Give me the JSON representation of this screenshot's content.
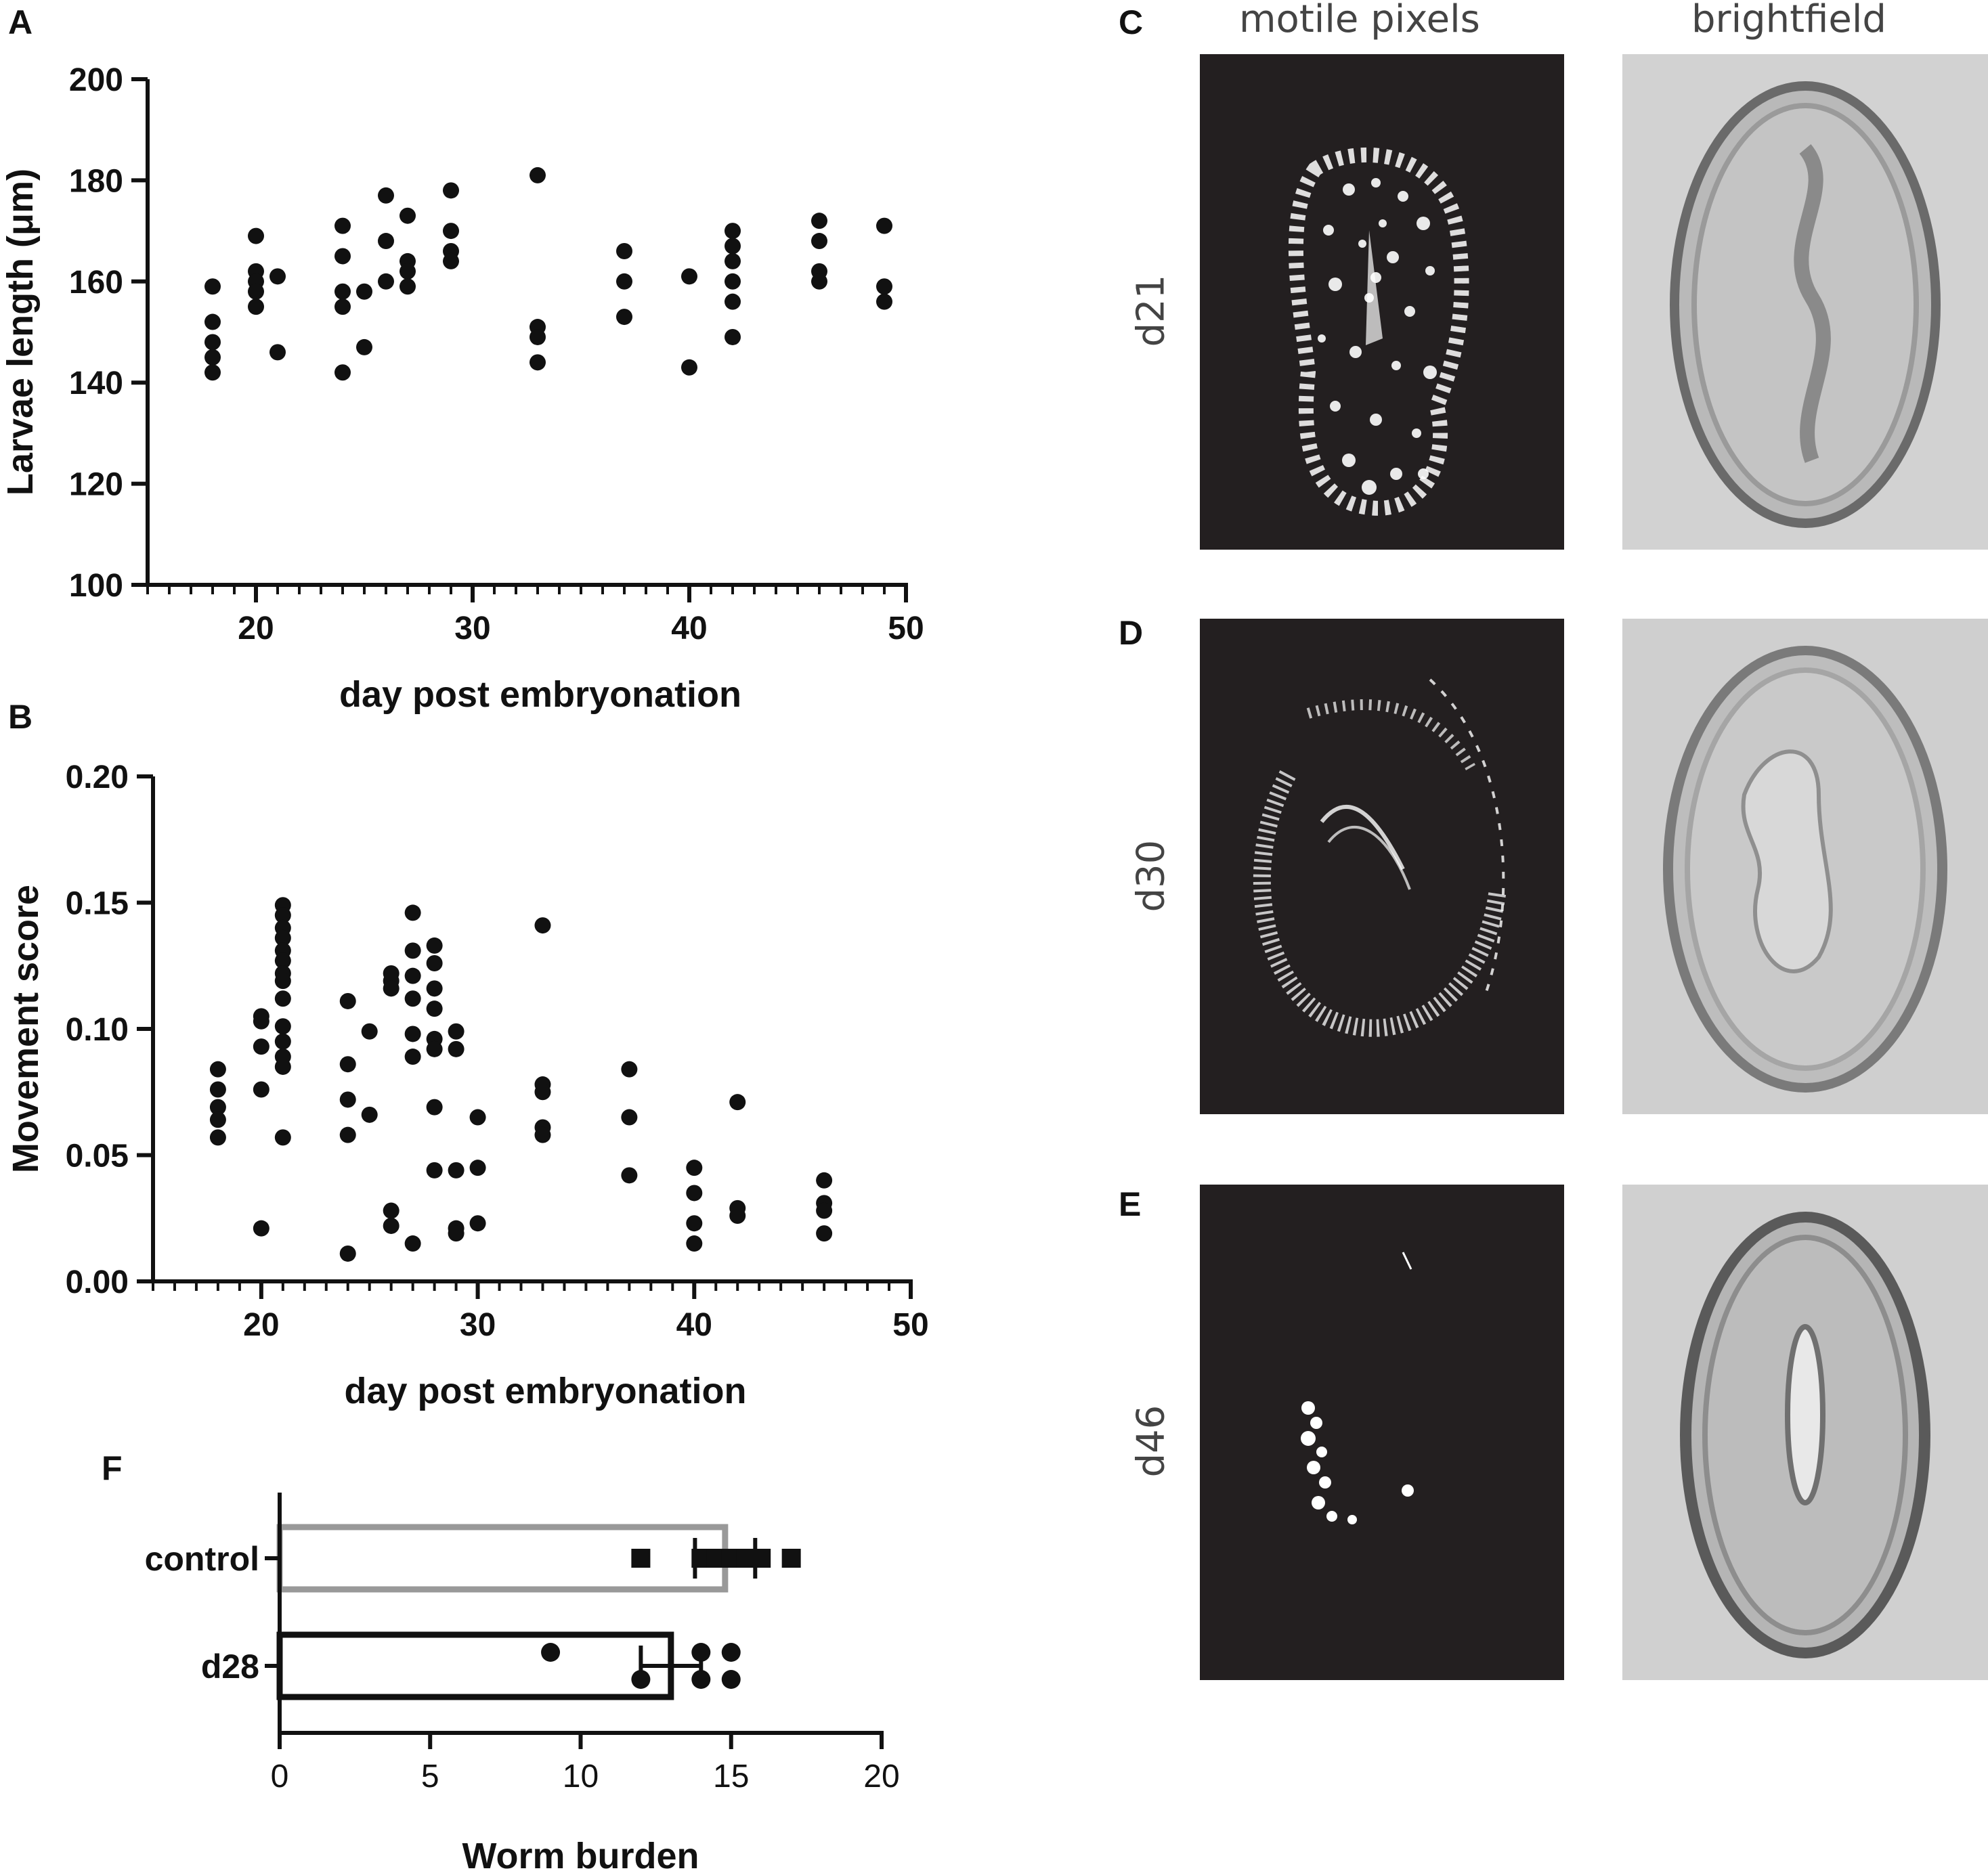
{
  "panel_letters": {
    "a": "A",
    "b": "B",
    "c": "C",
    "d": "D",
    "e": "E",
    "f": "F"
  },
  "image_panels": {
    "col_titles": [
      "motile pixels",
      "brightfield"
    ],
    "row_labels": [
      "d21",
      "d30",
      "d46"
    ]
  },
  "colors": {
    "points": "#111111",
    "axis": "#111111",
    "control_bar": "#999999",
    "d28_bar": "#111111",
    "motile_bg": "#231f20",
    "brightfield_bg": "#d2d2d2"
  },
  "chart_data": [
    {
      "id": "A",
      "type": "scatter",
      "xlabel": "day post embryonation",
      "ylabel": "Larvae length (μm)",
      "xlim": [
        15,
        50
      ],
      "ylim": [
        100,
        200
      ],
      "xticks": [
        20,
        30,
        40,
        50
      ],
      "yticks": [
        100,
        120,
        140,
        160,
        180,
        200
      ],
      "points": [
        [
          18,
          159
        ],
        [
          18,
          152
        ],
        [
          18,
          148
        ],
        [
          18,
          145
        ],
        [
          18,
          142
        ],
        [
          20,
          169
        ],
        [
          20,
          162
        ],
        [
          20,
          160
        ],
        [
          20,
          158
        ],
        [
          20,
          155
        ],
        [
          21,
          161
        ],
        [
          21,
          146
        ],
        [
          24,
          171
        ],
        [
          24,
          165
        ],
        [
          24,
          158
        ],
        [
          24,
          155
        ],
        [
          24,
          142
        ],
        [
          25,
          158
        ],
        [
          25,
          147
        ],
        [
          26,
          177
        ],
        [
          26,
          168
        ],
        [
          26,
          160
        ],
        [
          27,
          173
        ],
        [
          27,
          164
        ],
        [
          27,
          162
        ],
        [
          27,
          159
        ],
        [
          29,
          178
        ],
        [
          29,
          170
        ],
        [
          29,
          166
        ],
        [
          29,
          164
        ],
        [
          33,
          181
        ],
        [
          33,
          151
        ],
        [
          33,
          149
        ],
        [
          33,
          144
        ],
        [
          37,
          166
        ],
        [
          37,
          160
        ],
        [
          37,
          153
        ],
        [
          40,
          161
        ],
        [
          40,
          143
        ],
        [
          42,
          170
        ],
        [
          42,
          167
        ],
        [
          42,
          164
        ],
        [
          42,
          160
        ],
        [
          42,
          156
        ],
        [
          42,
          149
        ],
        [
          46,
          172
        ],
        [
          46,
          168
        ],
        [
          46,
          162
        ],
        [
          46,
          160
        ],
        [
          49,
          171
        ],
        [
          49,
          159
        ],
        [
          49,
          156
        ]
      ]
    },
    {
      "id": "B",
      "type": "scatter",
      "xlabel": "day post embryonation",
      "ylabel": "Movement score",
      "xlim": [
        15,
        50
      ],
      "ylim": [
        0,
        0.2
      ],
      "xticks": [
        20,
        30,
        40,
        50
      ],
      "yticks": [
        0.0,
        0.05,
        0.1,
        0.15,
        0.2
      ],
      "ytick_labels": [
        "0.00",
        "0.05",
        "0.10",
        "0.15",
        "0.20"
      ],
      "points": [
        [
          18,
          0.084
        ],
        [
          18,
          0.076
        ],
        [
          18,
          0.069
        ],
        [
          18,
          0.064
        ],
        [
          18,
          0.057
        ],
        [
          20,
          0.105
        ],
        [
          20,
          0.103
        ],
        [
          20,
          0.093
        ],
        [
          20,
          0.076
        ],
        [
          20,
          0.021
        ],
        [
          21,
          0.149
        ],
        [
          21,
          0.145
        ],
        [
          21,
          0.14
        ],
        [
          21,
          0.136
        ],
        [
          21,
          0.131
        ],
        [
          21,
          0.127
        ],
        [
          21,
          0.122
        ],
        [
          21,
          0.119
        ],
        [
          21,
          0.112
        ],
        [
          21,
          0.101
        ],
        [
          21,
          0.095
        ],
        [
          21,
          0.089
        ],
        [
          21,
          0.085
        ],
        [
          21,
          0.057
        ],
        [
          24,
          0.111
        ],
        [
          24,
          0.086
        ],
        [
          24,
          0.072
        ],
        [
          24,
          0.058
        ],
        [
          24,
          0.011
        ],
        [
          25,
          0.099
        ],
        [
          25,
          0.066
        ],
        [
          26,
          0.122
        ],
        [
          26,
          0.119
        ],
        [
          26,
          0.116
        ],
        [
          26,
          0.028
        ],
        [
          26,
          0.022
        ],
        [
          27,
          0.146
        ],
        [
          27,
          0.131
        ],
        [
          27,
          0.121
        ],
        [
          27,
          0.112
        ],
        [
          27,
          0.098
        ],
        [
          27,
          0.089
        ],
        [
          27,
          0.015
        ],
        [
          28,
          0.133
        ],
        [
          28,
          0.126
        ],
        [
          28,
          0.116
        ],
        [
          28,
          0.108
        ],
        [
          28,
          0.096
        ],
        [
          28,
          0.092
        ],
        [
          28,
          0.069
        ],
        [
          28,
          0.044
        ],
        [
          29,
          0.099
        ],
        [
          29,
          0.092
        ],
        [
          29,
          0.044
        ],
        [
          29,
          0.021
        ],
        [
          29,
          0.019
        ],
        [
          30,
          0.065
        ],
        [
          30,
          0.045
        ],
        [
          30,
          0.023
        ],
        [
          33,
          0.141
        ],
        [
          33,
          0.078
        ],
        [
          33,
          0.075
        ],
        [
          33,
          0.061
        ],
        [
          33,
          0.058
        ],
        [
          37,
          0.084
        ],
        [
          37,
          0.065
        ],
        [
          37,
          0.042
        ],
        [
          40,
          0.045
        ],
        [
          40,
          0.035
        ],
        [
          40,
          0.023
        ],
        [
          40,
          0.015
        ],
        [
          42,
          0.071
        ],
        [
          42,
          0.029
        ],
        [
          42,
          0.026
        ],
        [
          46,
          0.04
        ],
        [
          46,
          0.031
        ],
        [
          46,
          0.028
        ],
        [
          46,
          0.019
        ]
      ]
    },
    {
      "id": "F",
      "type": "bar",
      "orientation": "horizontal",
      "xlabel": "Worm burden",
      "xlim": [
        0,
        20
      ],
      "xticks": [
        0,
        5,
        10,
        15,
        20
      ],
      "categories": [
        "control",
        "d28"
      ],
      "values": [
        14.8,
        13.0
      ],
      "errors": [
        1.0,
        1.0
      ],
      "points": {
        "control": [
          12,
          14,
          14.5,
          15,
          15.5,
          16,
          17
        ],
        "d28": [
          9,
          12,
          14,
          14,
          15,
          15
        ]
      }
    }
  ]
}
